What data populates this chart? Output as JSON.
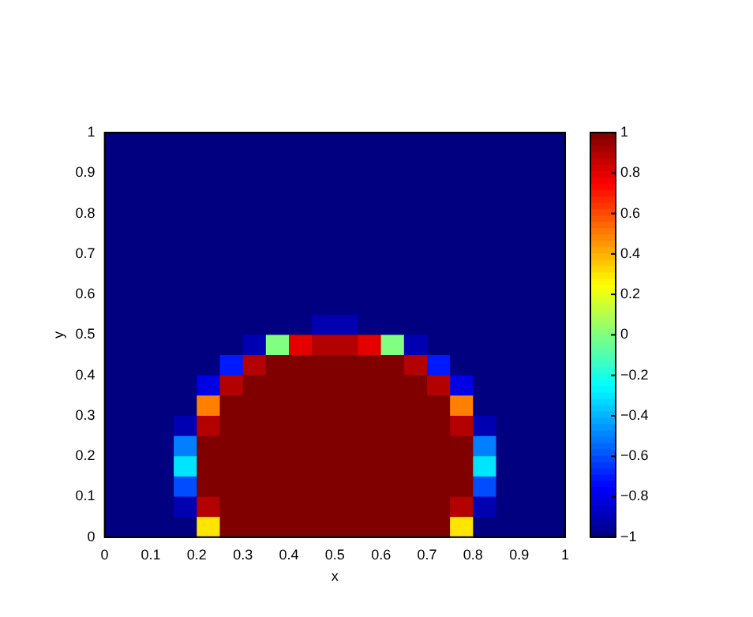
{
  "chart_data": {
    "type": "heatmap",
    "xlabel": "x",
    "ylabel": "y",
    "x": [
      0.025,
      0.075,
      0.125,
      0.175,
      0.225,
      0.275,
      0.325,
      0.375,
      0.425,
      0.475,
      0.525,
      0.575,
      0.625,
      0.675,
      0.725,
      0.775,
      0.825,
      0.875,
      0.925,
      0.975
    ],
    "y": [
      0.975,
      0.925,
      0.875,
      0.825,
      0.775,
      0.725,
      0.675,
      0.625,
      0.575,
      0.525,
      0.475,
      0.425,
      0.375,
      0.325,
      0.275,
      0.225,
      0.175,
      0.125,
      0.075,
      0.025
    ],
    "xlim": [
      0,
      1
    ],
    "ylim": [
      0,
      1
    ],
    "xticks": [
      0,
      0.1,
      0.2,
      0.3,
      0.4,
      0.5,
      0.6,
      0.7,
      0.8,
      0.9,
      1
    ],
    "yticks": [
      0,
      0.1,
      0.2,
      0.3,
      0.4,
      0.5,
      0.6,
      0.7,
      0.8,
      0.9,
      1
    ],
    "clim": [
      -1,
      1
    ],
    "cticks": [
      -1,
      -0.8,
      -0.6,
      -0.4,
      -0.2,
      0,
      0.2,
      0.4,
      0.6,
      0.8,
      1
    ],
    "grid": false,
    "cells": [
      [
        -1,
        -1,
        -1,
        -1,
        -1,
        -1,
        -1,
        -1,
        -1,
        -1,
        -1,
        -1,
        -1,
        -1,
        -1,
        -1,
        -1,
        -1,
        -1,
        -1
      ],
      [
        -1,
        -1,
        -1,
        -1,
        -1,
        -1,
        -1,
        -1,
        -1,
        -1,
        -1,
        -1,
        -1,
        -1,
        -1,
        -1,
        -1,
        -1,
        -1,
        -1
      ],
      [
        -1,
        -1,
        -1,
        -1,
        -1,
        -1,
        -1,
        -1,
        -1,
        -1,
        -1,
        -1,
        -1,
        -1,
        -1,
        -1,
        -1,
        -1,
        -1,
        -1
      ],
      [
        -1,
        -1,
        -1,
        -1,
        -1,
        -1,
        -1,
        -1,
        -1,
        -1,
        -1,
        -1,
        -1,
        -1,
        -1,
        -1,
        -1,
        -1,
        -1,
        -1
      ],
      [
        -1,
        -1,
        -1,
        -1,
        -1,
        -1,
        -1,
        -1,
        -1,
        -1,
        -1,
        -1,
        -1,
        -1,
        -1,
        -1,
        -1,
        -1,
        -1,
        -1
      ],
      [
        -1,
        -1,
        -1,
        -1,
        -1,
        -1,
        -1,
        -1,
        -1,
        -1,
        -1,
        -1,
        -1,
        -1,
        -1,
        -1,
        -1,
        -1,
        -1,
        -1
      ],
      [
        -1,
        -1,
        -1,
        -1,
        -1,
        -1,
        -1,
        -1,
        -1,
        -1,
        -1,
        -1,
        -1,
        -1,
        -1,
        -1,
        -1,
        -1,
        -1,
        -1
      ],
      [
        -1,
        -1,
        -1,
        -1,
        -1,
        -1,
        -1,
        -1,
        -1,
        -1,
        -1,
        -1,
        -1,
        -1,
        -1,
        -1,
        -1,
        -1,
        -1,
        -1
      ],
      [
        -1,
        -1,
        -1,
        -1,
        -1,
        -1,
        -1,
        -1,
        -1,
        -1,
        -1,
        -1,
        -1,
        -1,
        -1,
        -1,
        -1,
        -1,
        -1,
        -1
      ],
      [
        -1,
        -1,
        -1,
        -1,
        -1,
        -1,
        -1,
        -1,
        -1,
        -0.9,
        -0.9,
        -1,
        -1,
        -1,
        -1,
        -1,
        -1,
        -1,
        -1,
        -1
      ],
      [
        -1,
        -1,
        -1,
        -1,
        -1,
        -1,
        -0.9,
        0,
        0.8,
        0.9,
        0.9,
        0.8,
        0,
        -0.9,
        -1,
        -1,
        -1,
        -1,
        -1,
        -1
      ],
      [
        -1,
        -1,
        -1,
        -1,
        -1,
        -0.7,
        0.9,
        1,
        1,
        1,
        1,
        1,
        1,
        0.9,
        -0.7,
        -1,
        -1,
        -1,
        -1,
        -1
      ],
      [
        -1,
        -1,
        -1,
        -1,
        -0.8,
        0.9,
        1,
        1,
        1,
        1,
        1,
        1,
        1,
        1,
        0.9,
        -0.8,
        -1,
        -1,
        -1,
        -1
      ],
      [
        -1,
        -1,
        -1,
        -1,
        0.5,
        1,
        1,
        1,
        1,
        1,
        1,
        1,
        1,
        1,
        1,
        0.5,
        -1,
        -1,
        -1,
        -1
      ],
      [
        -1,
        -1,
        -1,
        -0.9,
        0.9,
        1,
        1,
        1,
        1,
        1,
        1,
        1,
        1,
        1,
        1,
        0.9,
        -0.9,
        -1,
        -1,
        -1
      ],
      [
        -1,
        -1,
        -1,
        -0.5,
        1,
        1,
        1,
        1,
        1,
        1,
        1,
        1,
        1,
        1,
        1,
        1,
        -0.5,
        -1,
        -1,
        -1
      ],
      [
        -1,
        -1,
        -1,
        -0.3,
        1,
        1,
        1,
        1,
        1,
        1,
        1,
        1,
        1,
        1,
        1,
        1,
        -0.3,
        -1,
        -1,
        -1
      ],
      [
        -1,
        -1,
        -1,
        -0.6,
        1,
        1,
        1,
        1,
        1,
        1,
        1,
        1,
        1,
        1,
        1,
        1,
        -0.6,
        -1,
        -1,
        -1
      ],
      [
        -1,
        -1,
        -1,
        -0.9,
        0.9,
        1,
        1,
        1,
        1,
        1,
        1,
        1,
        1,
        1,
        1,
        0.9,
        -0.9,
        -1,
        -1,
        -1
      ],
      [
        -1,
        -1,
        -1,
        -1,
        0.3,
        1,
        1,
        1,
        1,
        1,
        1,
        1,
        1,
        1,
        1,
        0.3,
        -1,
        -1,
        -1,
        -1
      ]
    ]
  }
}
